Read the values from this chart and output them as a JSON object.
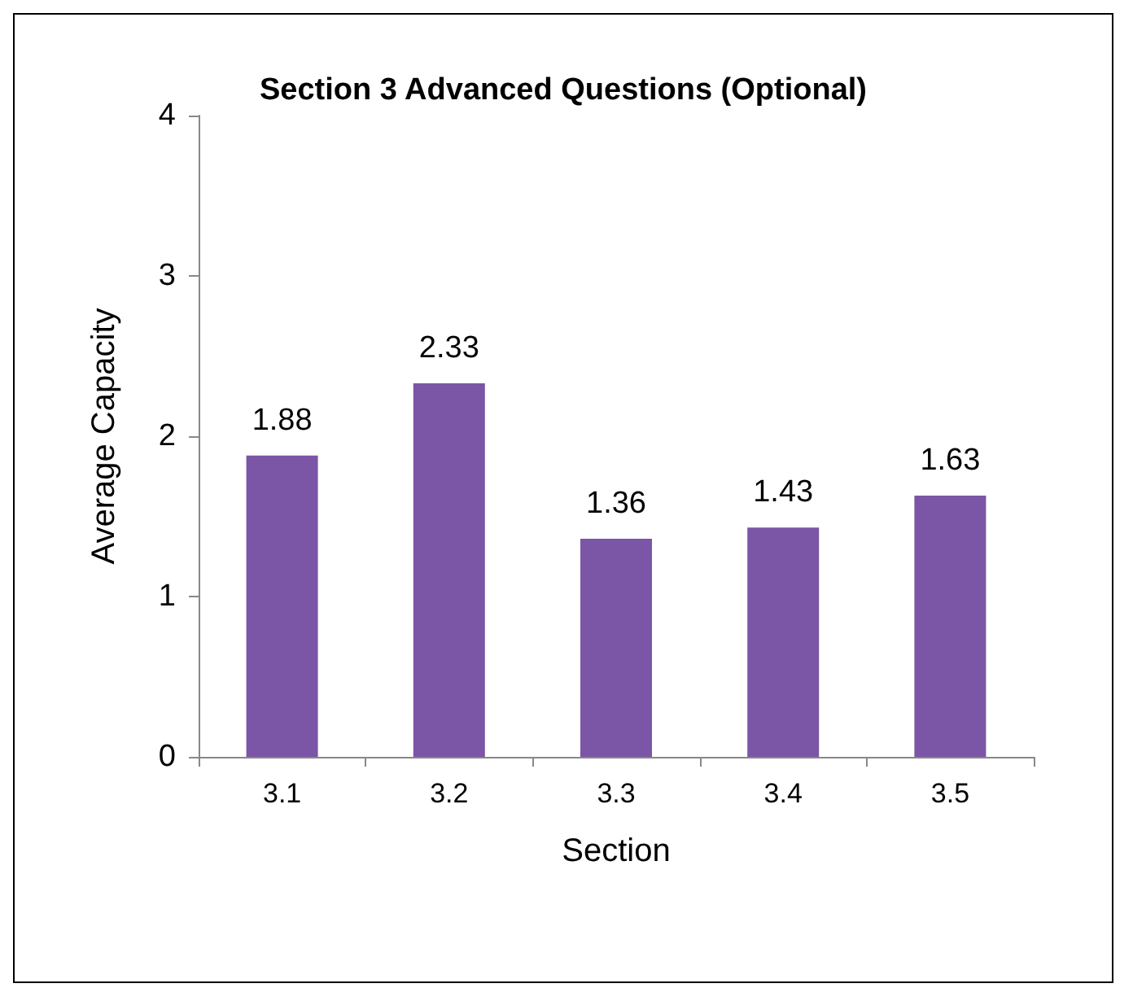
{
  "chart_data": {
    "type": "bar",
    "title": "Section 3 Advanced Questions (Optional)",
    "xlabel": "Section",
    "ylabel": "Average Capacity",
    "categories": [
      "3.1",
      "3.2",
      "3.3",
      "3.4",
      "3.5"
    ],
    "values": [
      1.88,
      2.33,
      1.36,
      1.43,
      1.63
    ],
    "color": "#7b55a6",
    "ylim": [
      0,
      4
    ],
    "yticks": [
      0,
      1,
      2,
      3,
      4
    ],
    "grid": false,
    "data_labels": true
  }
}
